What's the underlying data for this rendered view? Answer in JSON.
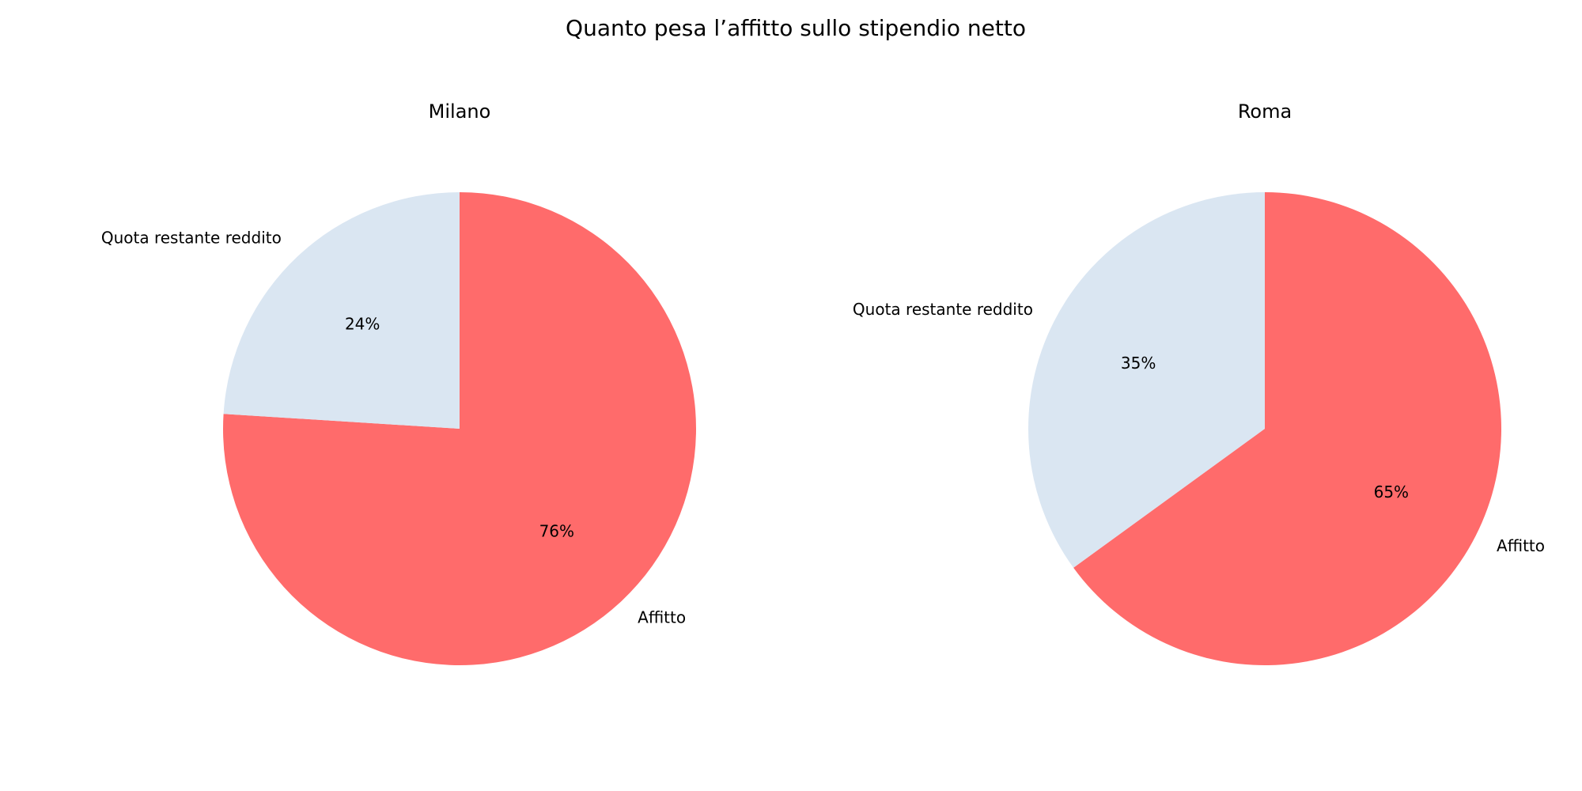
{
  "title": "Quanto pesa l’affitto sullo stipendio netto",
  "chart_data": [
    {
      "type": "pie",
      "title": "Milano",
      "categories": [
        "Affitto",
        "Quota restante reddito"
      ],
      "values": [
        76,
        24
      ],
      "value_labels": [
        "76%",
        "24%"
      ],
      "colors": [
        "#ff6b6b",
        "#dae6f2"
      ]
    },
    {
      "type": "pie",
      "title": "Roma",
      "categories": [
        "Affitto",
        "Quota restante reddito"
      ],
      "values": [
        65,
        35
      ],
      "value_labels": [
        "65%",
        "35%"
      ],
      "colors": [
        "#ff6b6b",
        "#dae6f2"
      ]
    }
  ]
}
